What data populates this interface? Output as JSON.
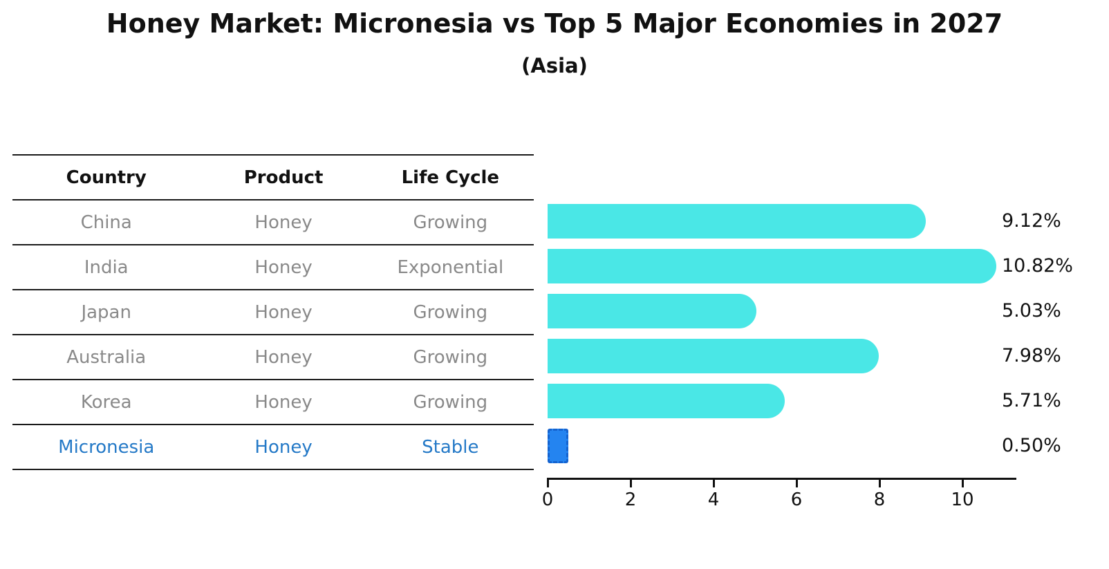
{
  "header": {
    "title": "Honey Market: Micronesia vs Top 5 Major Economies in 2027",
    "subtitle": "(Asia)"
  },
  "table": {
    "headers": [
      "Country",
      "Product",
      "Life Cycle"
    ],
    "rows": [
      {
        "country": "China",
        "product": "Honey",
        "life_cycle": "Growing"
      },
      {
        "country": "India",
        "product": "Honey",
        "life_cycle": "Exponential"
      },
      {
        "country": "Japan",
        "product": "Honey",
        "life_cycle": "Growing"
      },
      {
        "country": "Australia",
        "product": "Honey",
        "life_cycle": "Growing"
      },
      {
        "country": "Korea",
        "product": "Honey",
        "life_cycle": "Growing"
      },
      {
        "country": "Micronesia",
        "product": "Honey",
        "life_cycle": "Stable"
      }
    ]
  },
  "chart_data": {
    "type": "bar",
    "orientation": "horizontal",
    "title": "Honey Market: Micronesia vs Top 5 Major Economies in 2027",
    "subtitle": "(Asia)",
    "categories": [
      "China",
      "India",
      "Japan",
      "Australia",
      "Korea",
      "Micronesia"
    ],
    "values": [
      9.12,
      10.82,
      5.03,
      7.98,
      5.71,
      0.5
    ],
    "value_labels": [
      "9.12%",
      "10.82%",
      "5.03%",
      "7.98%",
      "5.71%",
      "0.50%"
    ],
    "highlight_category": "Micronesia",
    "xlabel": "",
    "ylabel": "",
    "xlim": [
      0,
      11.3
    ],
    "x_ticks": [
      0,
      2,
      4,
      6,
      8,
      10
    ],
    "grid": false,
    "legend": false,
    "colors": {
      "bar": "#4ae7e6",
      "highlight_bar_fill": "#2484f0",
      "highlight_bar_border": "#1563cf",
      "highlight_text": "#2479c7",
      "table_text": "#898989",
      "heading_text": "#111111"
    }
  }
}
